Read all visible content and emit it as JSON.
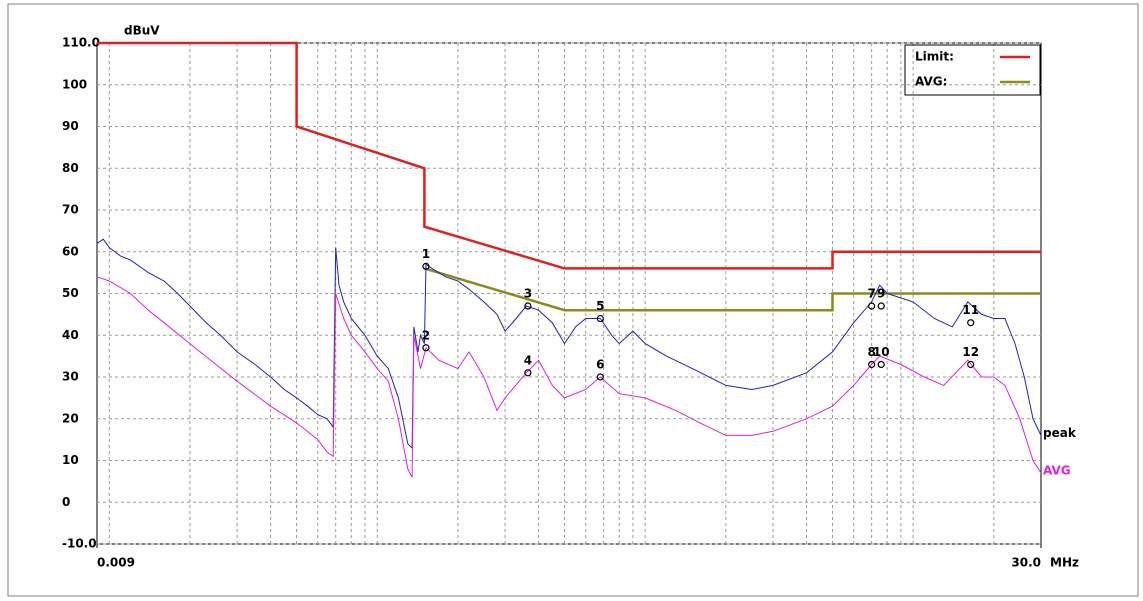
{
  "chart_data": {
    "type": "line",
    "ylabel": "dBuV",
    "xlabel": "MHz",
    "xlim": [
      0.009,
      30
    ],
    "ylim": [
      -10,
      110
    ],
    "xscale": "log",
    "grid": true,
    "xticks": [
      {
        "value": 0.009,
        "label": "0.009"
      },
      {
        "value": 30,
        "label": "30.0"
      }
    ],
    "xgrid_ticks": [
      0.01,
      0.02,
      0.03,
      0.04,
      0.05,
      0.06,
      0.07,
      0.08,
      0.09,
      0.1,
      0.2,
      0.3,
      0.4,
      0.5,
      0.6,
      0.7,
      0.8,
      0.9,
      1,
      2,
      3,
      4,
      5,
      6,
      7,
      8,
      9,
      10,
      20
    ],
    "yticks": [
      {
        "value": 110,
        "label": "110.0"
      },
      100,
      90,
      80,
      70,
      60,
      50,
      40,
      30,
      20,
      10,
      0,
      {
        "value": -10,
        "label": "-10.0"
      }
    ],
    "series": [
      {
        "name": "Limit:",
        "color": "#e02020",
        "label_style": "legend",
        "x": [
          0.009,
          0.05,
          0.05,
          0.15,
          0.15,
          0.5,
          5,
          5,
          30
        ],
        "values": [
          110,
          110,
          90,
          80,
          66,
          56,
          56,
          60,
          60
        ]
      },
      {
        "name": "AVG:",
        "color": "#8b8b1a",
        "label_style": "legend",
        "x": [
          0.15,
          0.5,
          5,
          5,
          30
        ],
        "values": [
          56,
          46,
          46,
          50,
          50
        ]
      },
      {
        "name": "peak",
        "color": "#2020c8",
        "label_style": "end",
        "x": [
          0.009,
          0.0095,
          0.01,
          0.011,
          0.012,
          0.014,
          0.016,
          0.018,
          0.02,
          0.023,
          0.026,
          0.03,
          0.035,
          0.04,
          0.045,
          0.05,
          0.055,
          0.06,
          0.065,
          0.0685,
          0.07,
          0.072,
          0.075,
          0.08,
          0.09,
          0.1,
          0.11,
          0.12,
          0.13,
          0.135,
          0.137,
          0.142,
          0.145,
          0.15,
          0.152,
          0.16,
          0.18,
          0.2,
          0.22,
          0.25,
          0.28,
          0.3,
          0.33,
          0.36,
          0.4,
          0.45,
          0.5,
          0.55,
          0.6,
          0.68,
          0.75,
          0.8,
          0.9,
          1,
          1.2,
          1.5,
          2,
          2.5,
          3,
          4,
          5,
          6,
          7,
          7.5,
          8,
          10,
          12,
          14,
          16,
          18,
          20,
          22,
          24,
          26,
          28,
          30
        ],
        "values": [
          62,
          63,
          61,
          59,
          58,
          55,
          53,
          50,
          47,
          43,
          40,
          36,
          33,
          30,
          27,
          25,
          23,
          21,
          20,
          18,
          61,
          52,
          48,
          44,
          40,
          35,
          32,
          25,
          14,
          13,
          42,
          36,
          40,
          38,
          57,
          56,
          54,
          53,
          51,
          48,
          45,
          41,
          44,
          47,
          46,
          43,
          38,
          42,
          44,
          44,
          40,
          38,
          41,
          38,
          35,
          32,
          28,
          27,
          28,
          31,
          36,
          43,
          48,
          52,
          50,
          48,
          44,
          42,
          48,
          45,
          44,
          44,
          38,
          30,
          20,
          16
        ]
      },
      {
        "name": "AVG",
        "color": "#e020e0",
        "label_style": "end",
        "x": [
          0.009,
          0.01,
          0.012,
          0.014,
          0.016,
          0.02,
          0.025,
          0.03,
          0.04,
          0.05,
          0.06,
          0.065,
          0.0685,
          0.07,
          0.075,
          0.08,
          0.09,
          0.1,
          0.11,
          0.12,
          0.13,
          0.135,
          0.137,
          0.145,
          0.152,
          0.17,
          0.2,
          0.22,
          0.25,
          0.28,
          0.3,
          0.36,
          0.4,
          0.45,
          0.5,
          0.6,
          0.68,
          0.8,
          1,
          1.3,
          1.6,
          2,
          2.5,
          3,
          4,
          5,
          6,
          7,
          7.5,
          9,
          11,
          13,
          16,
          18,
          20,
          22,
          25,
          28,
          30
        ],
        "values": [
          54,
          53,
          50,
          46,
          43,
          38,
          33,
          29,
          23,
          19,
          15,
          12,
          11,
          50,
          44,
          40,
          36,
          32,
          29,
          20,
          8,
          6,
          40,
          32,
          37,
          34,
          32,
          36,
          30,
          22,
          25,
          31,
          34,
          28,
          25,
          27,
          30,
          26,
          25,
          22,
          19,
          16,
          16,
          17,
          20,
          23,
          28,
          33,
          35,
          33,
          30,
          28,
          34,
          30,
          30,
          28,
          20,
          10,
          7
        ]
      }
    ],
    "markers": [
      {
        "label": "1",
        "x": 0.152,
        "y": 56.5
      },
      {
        "label": "2",
        "x": 0.152,
        "y": 37
      },
      {
        "label": "3",
        "x": 0.365,
        "y": 47
      },
      {
        "label": "4",
        "x": 0.365,
        "y": 31
      },
      {
        "label": "5",
        "x": 0.68,
        "y": 44
      },
      {
        "label": "6",
        "x": 0.68,
        "y": 30
      },
      {
        "label": "7",
        "x": 7.0,
        "y": 47
      },
      {
        "label": "8",
        "x": 7.0,
        "y": 33
      },
      {
        "label": "9",
        "x": 7.6,
        "y": 47
      },
      {
        "label": "10",
        "x": 7.6,
        "y": 33
      },
      {
        "label": "11",
        "x": 16.4,
        "y": 43
      },
      {
        "label": "12",
        "x": 16.4,
        "y": 33
      }
    ]
  }
}
